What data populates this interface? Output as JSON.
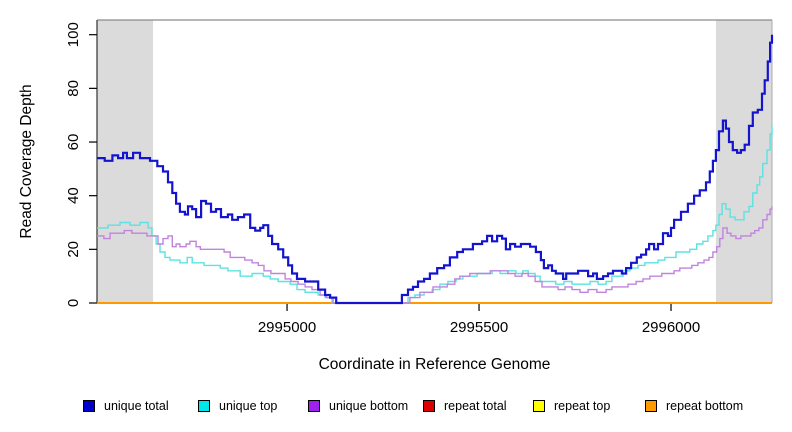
{
  "figure": {
    "title": "",
    "background": "#ffffff"
  },
  "chart_data": {
    "type": "line",
    "line_style": "step",
    "title": "",
    "xlabel": "Coordinate in Reference Genome",
    "ylabel": "Read Coverage Depth",
    "xlim": [
      2994505,
      2996263
    ],
    "ylim": [
      0,
      105
    ],
    "grid": false,
    "legend_position": "bottom",
    "x_ticks": [
      2995000,
      2995500,
      2996000
    ],
    "x_tick_labels": [
      "2995000",
      "2995500",
      "2996000"
    ],
    "y_ticks": [
      0,
      20,
      40,
      60,
      80,
      100
    ],
    "y_tick_labels": [
      "0",
      "20",
      "40",
      "60",
      "80",
      "100"
    ],
    "shaded_regions": [
      {
        "x0": 2994505,
        "x1": 2994651,
        "color": "#DBDBDB"
      },
      {
        "x0": 2996117,
        "x1": 2996263,
        "color": "#DBDBDB"
      }
    ],
    "legend": [
      {
        "label": "unique total",
        "color": "#0000CD"
      },
      {
        "label": "unique top",
        "color": "#00E5E5"
      },
      {
        "label": "unique bottom",
        "color": "#A020F0"
      },
      {
        "label": "repeat total",
        "color": "#DD0000"
      },
      {
        "label": "repeat top",
        "color": "#FFFF00"
      },
      {
        "label": "repeat bottom",
        "color": "#FF9900"
      }
    ],
    "series": [
      {
        "name": "repeat total",
        "color": "#DD0000",
        "points": [
          [
            2994505,
            0
          ],
          [
            2996263,
            0
          ]
        ]
      },
      {
        "name": "repeat top",
        "color": "#FFFF00",
        "points": [
          [
            2994505,
            0
          ],
          [
            2996263,
            0
          ]
        ]
      },
      {
        "name": "repeat bottom",
        "color": "#FF9900",
        "points": [
          [
            2994505,
            0
          ],
          [
            2996263,
            0
          ]
        ]
      },
      {
        "name": "unique top",
        "color": "#5CE2E2",
        "points": [
          [
            2994505,
            28
          ],
          [
            2994534,
            29
          ],
          [
            2994565,
            30
          ],
          [
            2994591,
            29
          ],
          [
            2994617,
            30
          ],
          [
            2994638,
            28
          ],
          [
            2994648,
            25
          ],
          [
            2994659,
            22
          ],
          [
            2994669,
            19
          ],
          [
            2994682,
            17
          ],
          [
            2994695,
            16
          ],
          [
            2994721,
            15
          ],
          [
            2994740,
            17
          ],
          [
            2994753,
            15
          ],
          [
            2994784,
            14
          ],
          [
            2994826,
            13
          ],
          [
            2994846,
            12
          ],
          [
            2994878,
            10
          ],
          [
            2994909,
            11
          ],
          [
            2994938,
            10
          ],
          [
            2994956,
            9
          ],
          [
            2994977,
            8
          ],
          [
            2995008,
            7
          ],
          [
            2995026,
            5
          ],
          [
            2995047,
            4
          ],
          [
            2995081,
            3
          ],
          [
            2995099,
            2
          ],
          [
            2995117,
            0
          ],
          [
            2995294,
            0
          ],
          [
            2995315,
            2
          ],
          [
            2995333,
            3
          ],
          [
            2995357,
            4
          ],
          [
            2995378,
            5
          ],
          [
            2995398,
            7
          ],
          [
            2995419,
            8
          ],
          [
            2995440,
            9
          ],
          [
            2995458,
            10
          ],
          [
            2995495,
            11
          ],
          [
            2995534,
            12
          ],
          [
            2995555,
            11
          ],
          [
            2995575,
            12
          ],
          [
            2995596,
            11
          ],
          [
            2995614,
            12
          ],
          [
            2995628,
            11
          ],
          [
            2995646,
            10
          ],
          [
            2995659,
            8
          ],
          [
            2995700,
            7
          ],
          [
            2995721,
            8
          ],
          [
            2995742,
            7
          ],
          [
            2995789,
            8
          ],
          [
            2995810,
            7
          ],
          [
            2995831,
            8
          ],
          [
            2995846,
            10
          ],
          [
            2995875,
            12
          ],
          [
            2995893,
            13
          ],
          [
            2995914,
            14
          ],
          [
            2995932,
            15
          ],
          [
            2995966,
            16
          ],
          [
            2995984,
            17
          ],
          [
            2996013,
            19
          ],
          [
            2996049,
            20
          ],
          [
            2996067,
            22
          ],
          [
            2996083,
            23
          ],
          [
            2996096,
            25
          ],
          [
            2996109,
            27
          ],
          [
            2996117,
            29
          ],
          [
            2996125,
            33
          ],
          [
            2996133,
            37
          ],
          [
            2996143,
            35
          ],
          [
            2996154,
            32
          ],
          [
            2996167,
            31
          ],
          [
            2996190,
            34
          ],
          [
            2996203,
            36
          ],
          [
            2996213,
            41
          ],
          [
            2996224,
            44
          ],
          [
            2996231,
            47
          ],
          [
            2996239,
            52
          ],
          [
            2996250,
            57
          ],
          [
            2996258,
            63
          ],
          [
            2996263,
            66
          ]
        ]
      },
      {
        "name": "unique bottom",
        "color": "#C184DC",
        "points": [
          [
            2994505,
            25
          ],
          [
            2994523,
            24
          ],
          [
            2994539,
            26
          ],
          [
            2994576,
            27
          ],
          [
            2994596,
            26
          ],
          [
            2994635,
            25
          ],
          [
            2994664,
            22
          ],
          [
            2994677,
            24
          ],
          [
            2994690,
            25
          ],
          [
            2994701,
            21
          ],
          [
            2994711,
            22
          ],
          [
            2994721,
            21
          ],
          [
            2994737,
            22
          ],
          [
            2994747,
            23
          ],
          [
            2994763,
            21
          ],
          [
            2994774,
            20
          ],
          [
            2994836,
            19
          ],
          [
            2994852,
            17
          ],
          [
            2994890,
            16
          ],
          [
            2994909,
            15
          ],
          [
            2994925,
            14
          ],
          [
            2994940,
            12
          ],
          [
            2994958,
            11
          ],
          [
            2994995,
            9
          ],
          [
            2995010,
            8
          ],
          [
            2995029,
            7
          ],
          [
            2995047,
            6
          ],
          [
            2995065,
            5
          ],
          [
            2995086,
            3
          ],
          [
            2995102,
            2
          ],
          [
            2995120,
            0
          ],
          [
            2995299,
            0
          ],
          [
            2995320,
            2
          ],
          [
            2995346,
            4
          ],
          [
            2995380,
            6
          ],
          [
            2995417,
            7
          ],
          [
            2995437,
            9
          ],
          [
            2995450,
            10
          ],
          [
            2995476,
            11
          ],
          [
            2995529,
            12
          ],
          [
            2995575,
            11
          ],
          [
            2995594,
            10
          ],
          [
            2995612,
            11
          ],
          [
            2995628,
            10
          ],
          [
            2995646,
            8
          ],
          [
            2995664,
            6
          ],
          [
            2995706,
            5
          ],
          [
            2995724,
            6
          ],
          [
            2995742,
            5
          ],
          [
            2995763,
            4
          ],
          [
            2995784,
            5
          ],
          [
            2995807,
            4
          ],
          [
            2995831,
            5
          ],
          [
            2995846,
            6
          ],
          [
            2995888,
            7
          ],
          [
            2995909,
            8
          ],
          [
            2995927,
            9
          ],
          [
            2995945,
            10
          ],
          [
            2995976,
            11
          ],
          [
            2996008,
            12
          ],
          [
            2996023,
            13
          ],
          [
            2996054,
            14
          ],
          [
            2996070,
            15
          ],
          [
            2996086,
            16
          ],
          [
            2996099,
            17
          ],
          [
            2996109,
            19
          ],
          [
            2996119,
            21
          ],
          [
            2996127,
            24
          ],
          [
            2996135,
            28
          ],
          [
            2996146,
            26
          ],
          [
            2996156,
            25
          ],
          [
            2996169,
            24
          ],
          [
            2996182,
            25
          ],
          [
            2996208,
            26
          ],
          [
            2996218,
            27
          ],
          [
            2996229,
            28
          ],
          [
            2996239,
            31
          ],
          [
            2996250,
            33
          ],
          [
            2996258,
            35
          ],
          [
            2996263,
            36
          ]
        ]
      },
      {
        "name": "unique total",
        "color": "#1414CF",
        "points": [
          [
            2994505,
            54
          ],
          [
            2994525,
            53
          ],
          [
            2994545,
            55
          ],
          [
            2994560,
            54
          ],
          [
            2994573,
            56
          ],
          [
            2994583,
            54
          ],
          [
            2994599,
            56
          ],
          [
            2994617,
            54
          ],
          [
            2994643,
            53
          ],
          [
            2994662,
            51
          ],
          [
            2994677,
            49
          ],
          [
            2994690,
            45
          ],
          [
            2994701,
            41
          ],
          [
            2994711,
            37
          ],
          [
            2994721,
            34
          ],
          [
            2994734,
            33
          ],
          [
            2994742,
            36
          ],
          [
            2994753,
            35
          ],
          [
            2994763,
            32
          ],
          [
            2994776,
            38
          ],
          [
            2994789,
            37
          ],
          [
            2994802,
            34
          ],
          [
            2994815,
            35
          ],
          [
            2994828,
            32
          ],
          [
            2994846,
            33
          ],
          [
            2994857,
            31
          ],
          [
            2994872,
            32
          ],
          [
            2994888,
            33
          ],
          [
            2994904,
            28
          ],
          [
            2994917,
            27
          ],
          [
            2994930,
            28
          ],
          [
            2994938,
            29
          ],
          [
            2994951,
            25
          ],
          [
            2994961,
            22
          ],
          [
            2994977,
            20
          ],
          [
            2994990,
            17
          ],
          [
            2995003,
            14
          ],
          [
            2995013,
            11
          ],
          [
            2995026,
            9
          ],
          [
            2995047,
            8
          ],
          [
            2995065,
            8
          ],
          [
            2995081,
            5
          ],
          [
            2995099,
            3
          ],
          [
            2995112,
            2
          ],
          [
            2995128,
            0
          ],
          [
            2995289,
            0
          ],
          [
            2995299,
            3
          ],
          [
            2995315,
            5
          ],
          [
            2995328,
            6
          ],
          [
            2995341,
            8
          ],
          [
            2995357,
            9
          ],
          [
            2995372,
            11
          ],
          [
            2995391,
            13
          ],
          [
            2995409,
            14
          ],
          [
            2995424,
            17
          ],
          [
            2995443,
            19
          ],
          [
            2995458,
            20
          ],
          [
            2995484,
            22
          ],
          [
            2995508,
            23
          ],
          [
            2995521,
            25
          ],
          [
            2995534,
            23
          ],
          [
            2995547,
            25
          ],
          [
            2995560,
            24
          ],
          [
            2995570,
            20
          ],
          [
            2995581,
            22
          ],
          [
            2995594,
            21
          ],
          [
            2995609,
            22
          ],
          [
            2995633,
            21
          ],
          [
            2995648,
            19
          ],
          [
            2995661,
            16
          ],
          [
            2995669,
            13
          ],
          [
            2995680,
            14
          ],
          [
            2995690,
            12
          ],
          [
            2995700,
            11
          ],
          [
            2995719,
            9
          ],
          [
            2995727,
            11
          ],
          [
            2995758,
            12
          ],
          [
            2995784,
            10
          ],
          [
            2995797,
            11
          ],
          [
            2995807,
            9
          ],
          [
            2995823,
            10
          ],
          [
            2995836,
            11
          ],
          [
            2995849,
            12
          ],
          [
            2995872,
            11
          ],
          [
            2995883,
            13
          ],
          [
            2995896,
            15
          ],
          [
            2995911,
            17
          ],
          [
            2995922,
            18
          ],
          [
            2995935,
            20
          ],
          [
            2995943,
            22
          ],
          [
            2995956,
            20
          ],
          [
            2995966,
            22
          ],
          [
            2995979,
            26
          ],
          [
            2995992,
            25
          ],
          [
            2996000,
            28
          ],
          [
            2996008,
            31
          ],
          [
            2996026,
            34
          ],
          [
            2996044,
            37
          ],
          [
            2996060,
            40
          ],
          [
            2996075,
            42
          ],
          [
            2996091,
            45
          ],
          [
            2996101,
            49
          ],
          [
            2996109,
            53
          ],
          [
            2996117,
            57
          ],
          [
            2996125,
            64
          ],
          [
            2996135,
            68
          ],
          [
            2996143,
            65
          ],
          [
            2996151,
            60
          ],
          [
            2996161,
            57
          ],
          [
            2996172,
            56
          ],
          [
            2996182,
            57
          ],
          [
            2996192,
            59
          ],
          [
            2996203,
            66
          ],
          [
            2996213,
            71
          ],
          [
            2996226,
            72
          ],
          [
            2996237,
            78
          ],
          [
            2996244,
            83
          ],
          [
            2996252,
            90
          ],
          [
            2996258,
            97
          ],
          [
            2996263,
            100
          ]
        ]
      }
    ]
  }
}
